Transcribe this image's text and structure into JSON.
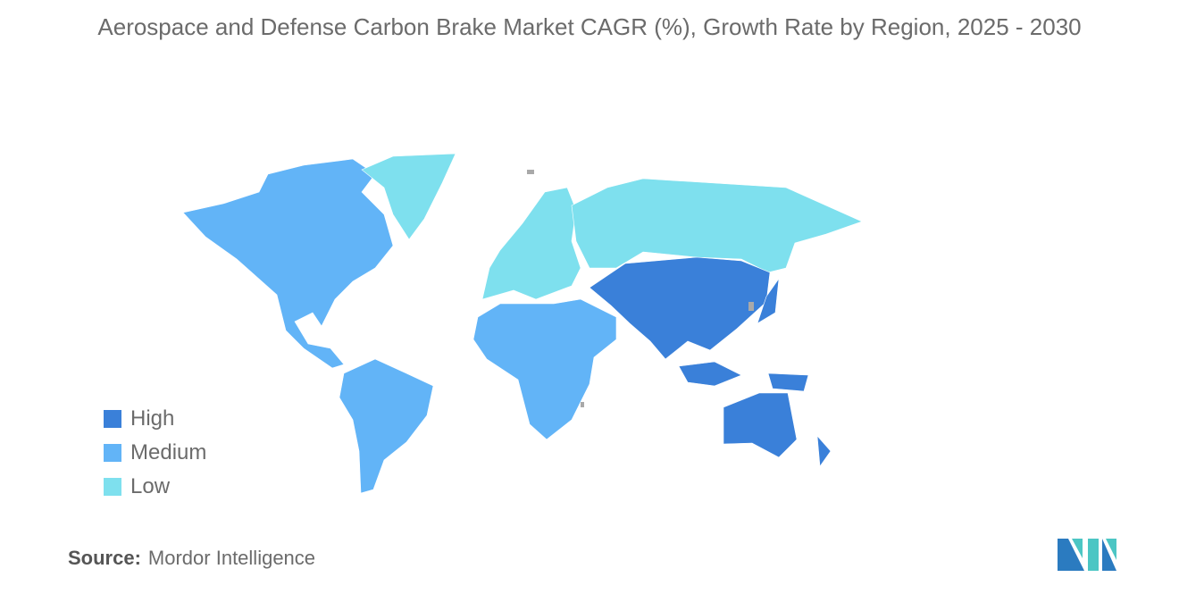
{
  "chart_data": {
    "type": "choropleth-map",
    "title": "Aerospace and Defense Carbon Brake Market CAGR (%), Growth Rate by Region, 2025 - 2030",
    "legend": [
      {
        "label": "High",
        "color": "#3a80d9"
      },
      {
        "label": "Medium",
        "color": "#62b4f7"
      },
      {
        "label": "Low",
        "color": "#7ee0ee"
      }
    ],
    "no_data_color": "#a9a9a9",
    "regions": [
      {
        "region": "North America",
        "level": "Medium"
      },
      {
        "region": "South America",
        "level": "Medium"
      },
      {
        "region": "Greenland",
        "level": "Low"
      },
      {
        "region": "Europe",
        "level": "Low"
      },
      {
        "region": "Russia",
        "level": "Low"
      },
      {
        "region": "Middle East and Africa",
        "level": "Medium"
      },
      {
        "region": "Asia-Pacific",
        "level": "High"
      },
      {
        "region": "Australia and New Zealand",
        "level": "High"
      }
    ],
    "legend_position": "bottom-left"
  },
  "source": {
    "label": "Source:",
    "value": "Mordor Intelligence"
  },
  "logo": {
    "colors": [
      "#2b7bc0",
      "#4cc6c4"
    ]
  }
}
